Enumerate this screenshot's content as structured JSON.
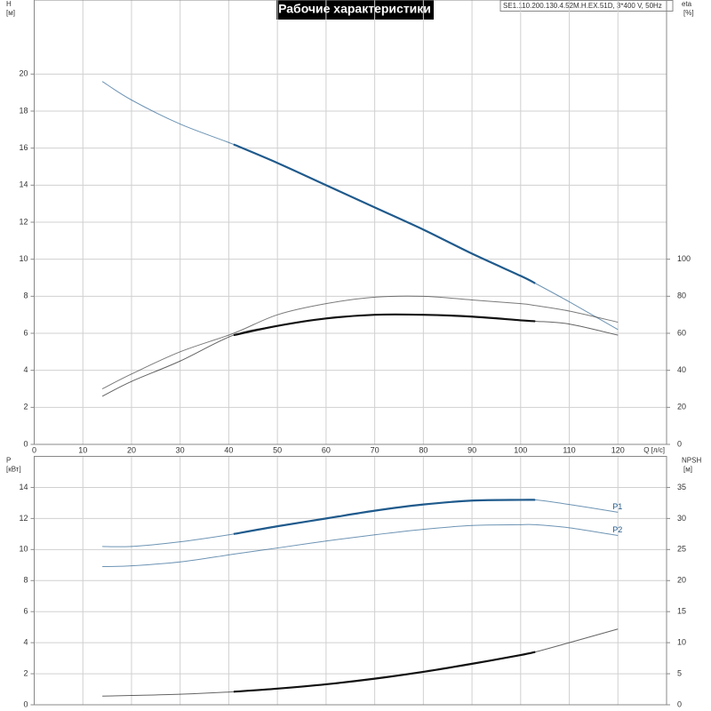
{
  "chart_data": [
    {
      "type": "line",
      "title": "Рабочие характеристики",
      "subtitle": "SE1.110.200.130.4.52M.H.EX.51D, 3*400 V, 50Hz",
      "xlabel": "Q [л/с]",
      "ylabel": "H",
      "yunit": "[м]",
      "y2label": "eta",
      "y2unit": "[%]",
      "xlim": [
        0,
        130
      ],
      "xticks": [
        0,
        10,
        20,
        30,
        40,
        50,
        60,
        70,
        80,
        90,
        100,
        110,
        120
      ],
      "show_xtick_labels": true,
      "ylim": [
        0,
        24
      ],
      "yticks": [
        0,
        2,
        4,
        6,
        8,
        10,
        12,
        14,
        16,
        18,
        20
      ],
      "y2lim": [
        0,
        240
      ],
      "y2ticks": [
        0,
        20,
        40,
        60,
        80,
        100
      ],
      "grid": true,
      "highlight_range": [
        41,
        103
      ],
      "series": [
        {
          "color": "#1f5a8c",
          "highlight": true,
          "x": [
            14,
            20,
            30,
            41,
            50,
            60,
            70,
            80,
            90,
            100,
            103,
            110,
            120
          ],
          "values": [
            19.6,
            18.6,
            17.3,
            16.2,
            15.2,
            14.0,
            12.8,
            11.6,
            10.3,
            9.1,
            8.7,
            7.7,
            6.2
          ]
        },
        {
          "color": "#333333",
          "highlight": false,
          "axis": "y2",
          "x": [
            14,
            20,
            30,
            41,
            50,
            60,
            70,
            80,
            90,
            100,
            103,
            110,
            120
          ],
          "values": [
            30,
            38,
            50,
            60,
            70,
            76,
            79.5,
            80,
            78,
            76,
            75,
            72,
            66
          ]
        },
        {
          "color": "#111111",
          "highlight": true,
          "axis": "y2",
          "x": [
            14,
            20,
            30,
            41,
            50,
            60,
            70,
            80,
            90,
            100,
            103,
            110,
            120
          ],
          "values": [
            26,
            34,
            45,
            59,
            64,
            68,
            70,
            70,
            69,
            67,
            66.5,
            65,
            59
          ]
        }
      ]
    },
    {
      "type": "line",
      "ylabel": "P",
      "yunit": "[кВт]",
      "y2label": "NPSH",
      "y2unit": "[м]",
      "xlim": [
        0,
        130
      ],
      "xticks": [
        10,
        20,
        30,
        40,
        50,
        60,
        70,
        80,
        90,
        100,
        110,
        120
      ],
      "show_xtick_labels": false,
      "ylim": [
        0,
        16
      ],
      "yticks": [
        0,
        2,
        4,
        6,
        8,
        10,
        12,
        14
      ],
      "y2lim": [
        0,
        40
      ],
      "y2ticks": [
        0,
        5,
        10,
        15,
        20,
        25,
        30,
        35
      ],
      "grid": true,
      "highlight_range": [
        41,
        103
      ],
      "series": [
        {
          "name": "P1",
          "color": "#1f5a8c",
          "highlight": true,
          "x": [
            14,
            20,
            30,
            41,
            50,
            60,
            70,
            80,
            90,
            100,
            103,
            110,
            120
          ],
          "values": [
            10.2,
            10.2,
            10.5,
            11.0,
            11.5,
            12.0,
            12.5,
            12.9,
            13.15,
            13.2,
            13.2,
            12.9,
            12.4
          ]
        },
        {
          "name": "P2",
          "color": "#1f5a8c",
          "highlight": false,
          "x": [
            14,
            20,
            30,
            41,
            50,
            60,
            70,
            80,
            90,
            100,
            103,
            110,
            120
          ],
          "values": [
            8.9,
            8.95,
            9.2,
            9.7,
            10.1,
            10.55,
            10.95,
            11.3,
            11.55,
            11.6,
            11.6,
            11.4,
            10.9
          ]
        },
        {
          "color": "#111111",
          "highlight": true,
          "axis": "y2",
          "x": [
            14,
            20,
            30,
            41,
            50,
            60,
            70,
            80,
            90,
            100,
            103,
            110,
            120
          ],
          "values": [
            1.4,
            1.5,
            1.7,
            2.1,
            2.6,
            3.3,
            4.2,
            5.3,
            6.6,
            8.0,
            8.5,
            10.0,
            12.2
          ]
        }
      ]
    }
  ]
}
